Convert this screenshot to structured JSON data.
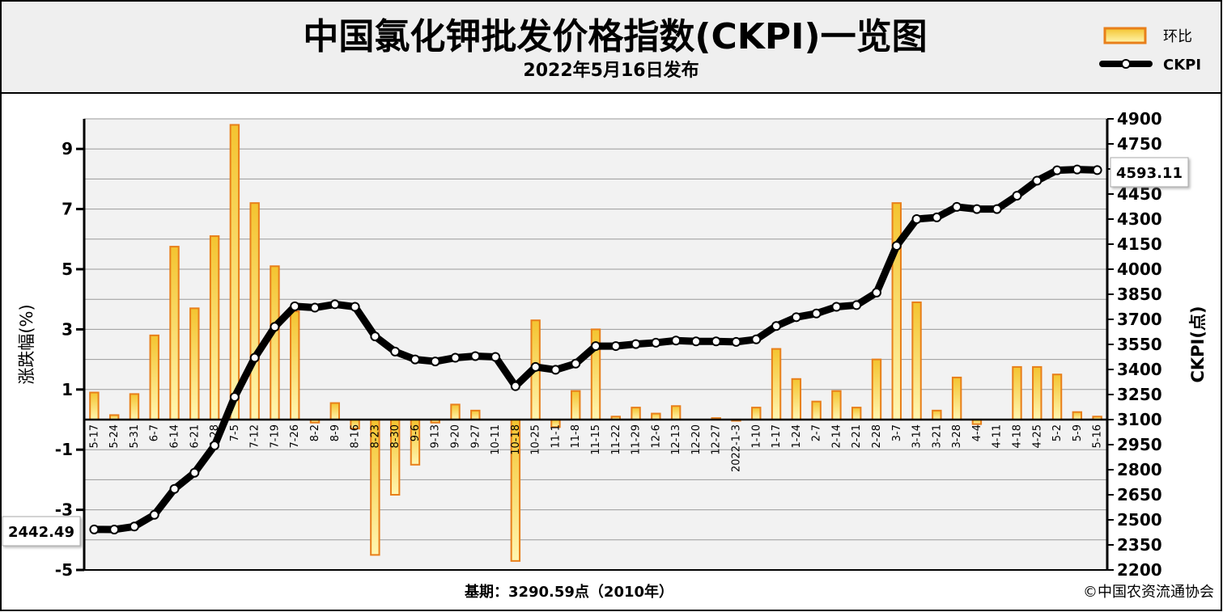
{
  "header": {
    "title": "中国氯化钾批发价格指数(CKPI)一览图",
    "subtitle": "2022年5月16日发布"
  },
  "legend": {
    "bar_label": "环比",
    "line_label": "CKPI"
  },
  "footer": {
    "base_note": "基期：3290.59点（2010年）",
    "copyright": "©中国农资流通协会"
  },
  "colors": {
    "bar_fill_top": "#f4c430",
    "bar_fill_bottom": "#fff2a0",
    "bar_stroke": "#e87f1a",
    "line": "#000000",
    "panel": "#f2f2f2"
  },
  "chart_data": {
    "type": "bar+line",
    "categories": [
      "5-17",
      "5-24",
      "5-31",
      "6-7",
      "6-14",
      "6-21",
      "6-28",
      "7-5",
      "7-12",
      "7-19",
      "7-26",
      "8-2",
      "8-9",
      "8-16",
      "8-23",
      "8-30",
      "9-6",
      "9-13",
      "9-20",
      "9-27",
      "10-11",
      "10-18",
      "10-25",
      "11-1",
      "11-8",
      "11-15",
      "11-22",
      "11-29",
      "12-6",
      "12-13",
      "12-20",
      "12-27",
      "2022-1-3",
      "1-10",
      "1-17",
      "1-24",
      "2-7",
      "2-14",
      "2-21",
      "2-28",
      "3-7",
      "3-14",
      "3-21",
      "3-28",
      "4-4",
      "4-11",
      "4-18",
      "4-25",
      "5-2",
      "5-9",
      "5-16"
    ],
    "series": [
      {
        "name": "环比",
        "type": "bar",
        "axis": "left",
        "values": [
          0.9,
          0.15,
          0.85,
          2.8,
          5.75,
          3.7,
          6.1,
          9.8,
          7.2,
          5.1,
          3.6,
          -0.1,
          0.55,
          -0.3,
          -4.5,
          -2.5,
          -1.5,
          -0.1,
          0.5,
          0.3,
          0.0,
          -4.7,
          3.3,
          -0.25,
          0.95,
          3.0,
          0.1,
          0.4,
          0.2,
          0.45,
          0.0,
          0.05,
          -0.02,
          0.4,
          2.35,
          1.35,
          0.6,
          0.95,
          0.4,
          2.0,
          7.2,
          3.9,
          0.3,
          1.4,
          -0.15,
          0.0,
          1.75,
          1.75,
          1.5,
          0.25,
          0.1
        ]
      },
      {
        "name": "CKPI",
        "type": "line",
        "axis": "right",
        "values": [
          2442.49,
          2442,
          2460,
          2530,
          2685,
          2782,
          2945,
          3235,
          3470,
          3655,
          3778,
          3770,
          3790,
          3775,
          3598,
          3507,
          3460,
          3448,
          3470,
          3480,
          3475,
          3300,
          3415,
          3398,
          3435,
          3540,
          3540,
          3552,
          3560,
          3573,
          3568,
          3568,
          3565,
          3580,
          3660,
          3713,
          3735,
          3775,
          3785,
          3860,
          4140,
          4300,
          4310,
          4373,
          4360,
          4360,
          4440,
          4530,
          4592,
          4597,
          4593.11
        ]
      }
    ],
    "left_axis": {
      "label": "涨跌幅(%)",
      "min": -5,
      "max": 10,
      "ticks": [
        9,
        7,
        5,
        3,
        1,
        -1,
        -3,
        -5
      ]
    },
    "right_axis": {
      "label": "CKPI(点)",
      "min": 2200,
      "max": 4900,
      "ticks": [
        4900,
        4750,
        4600,
        4450,
        4300,
        4150,
        4000,
        3850,
        3700,
        3550,
        3400,
        3250,
        3100,
        2950,
        2800,
        2650,
        2500,
        2350,
        2200
      ]
    },
    "annotations": {
      "first_value": "2442.49",
      "last_value": "4593.11"
    },
    "grid": true,
    "legend_position": "top-right"
  }
}
